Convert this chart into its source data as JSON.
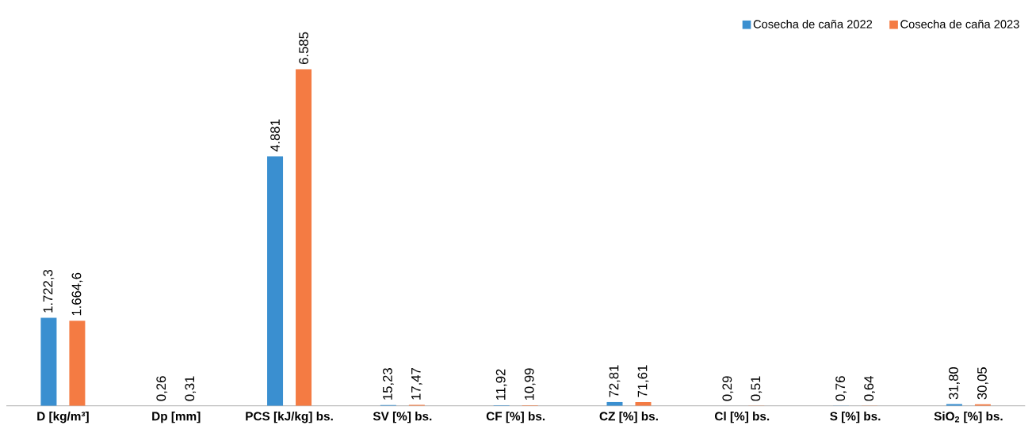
{
  "chart_data": {
    "type": "bar",
    "categories": [
      "D [kg/m³]",
      "Dp [mm]",
      "PCS [kJ/kg] bs.",
      "SV [%] bs.",
      "CF [%] bs.",
      "CZ [%] bs.",
      "Cl [%] bs.",
      "S [%] bs.",
      "SiO$_{2}$ [%] bs."
    ],
    "series": [
      {
        "name": "Cosecha de caña 2022",
        "color": "#3a8fd0",
        "values": [
          1722.3,
          0.26,
          4881,
          15.23,
          11.92,
          72.81,
          0.29,
          0.76,
          31.8
        ],
        "value_labels": [
          "1.722,3",
          "0,26",
          "4.881",
          "15,23",
          "11,92",
          "72,81",
          "0,29",
          "0,76",
          "31,80"
        ]
      },
      {
        "name": "Cosecha de caña 2023",
        "color": "#f47b43",
        "values": [
          1664.6,
          0.31,
          6585,
          17.47,
          10.99,
          71.61,
          0.51,
          0.64,
          30.05
        ],
        "value_labels": [
          "1.664,6",
          "0,31",
          "6.585",
          "17,47",
          "10,99",
          "71,61",
          "0,51",
          "0,64",
          "30,05"
        ]
      }
    ],
    "legend": "top right"
  }
}
